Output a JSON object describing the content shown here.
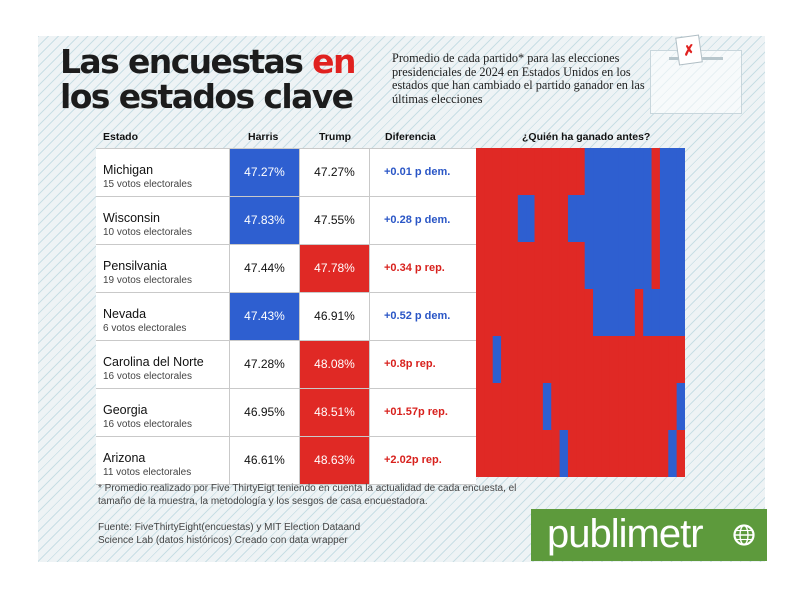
{
  "title": {
    "line1_part1": "Las encuestas",
    "line1_part2": "en",
    "line2": "los estados clave"
  },
  "subtitle": "Promedio de cada partido* para las elecciones presidenciales de 2024 en Estados Unidos en los estados que han cambiado el partido ganador en las últimas elecciones",
  "headers": {
    "state": "Estado",
    "harris": "Harris",
    "trump": "Trump",
    "difference": "Diferencia",
    "history": "¿Quién ha ganado antes?"
  },
  "colors": {
    "democrat": "#2e5fd0",
    "republican": "#e02925",
    "dem_text": "#2a56c6",
    "rep_text": "#d8211d",
    "brand": "#5d9a3c"
  },
  "chart_data": {
    "type": "table",
    "columns": [
      "Estado",
      "Harris",
      "Trump",
      "Diferencia",
      "¿Quién ha ganado antes?"
    ],
    "rows": [
      {
        "state": "Michigan",
        "votes": "15 votos electorales",
        "harris": "47.27%",
        "trump": "47.27%",
        "harris_value": 47.27,
        "trump_value": 47.27,
        "leader": "D",
        "diff": "+0.01 p dem.",
        "diff_party": "dem",
        "history": [
          "R",
          "R",
          "R",
          "R",
          "R",
          "R",
          "R",
          "R",
          "R",
          "R",
          "R",
          "R",
          "R",
          "D",
          "D",
          "D",
          "D",
          "D",
          "D",
          "D",
          "D",
          "R",
          "D",
          "D",
          "D"
        ]
      },
      {
        "state": "Wisconsin",
        "votes": "10 votos electorales",
        "harris": "47.83%",
        "trump": "47.55%",
        "harris_value": 47.83,
        "trump_value": 47.55,
        "leader": "D",
        "diff": "+0.28 p dem.",
        "diff_party": "dem",
        "history": [
          "R",
          "R",
          "R",
          "R",
          "R",
          "D",
          "D",
          "R",
          "R",
          "R",
          "R",
          "D",
          "D",
          "D",
          "D",
          "D",
          "D",
          "D",
          "D",
          "D",
          "D",
          "R",
          "D",
          "D",
          "D"
        ]
      },
      {
        "state": "Pensilvania",
        "votes": "19 votos electorales",
        "harris": "47.44%",
        "trump": "47.78%",
        "harris_value": 47.44,
        "trump_value": 47.78,
        "leader": "R",
        "diff": "+0.34 p rep.",
        "diff_party": "rep",
        "history": [
          "R",
          "R",
          "R",
          "R",
          "R",
          "R",
          "R",
          "R",
          "R",
          "R",
          "R",
          "R",
          "R",
          "D",
          "D",
          "D",
          "D",
          "D",
          "D",
          "D",
          "D",
          "R",
          "D",
          "D",
          "D"
        ]
      },
      {
        "state": "Nevada",
        "votes": "6 votos electorales",
        "harris": "47.43%",
        "trump": "46.91%",
        "harris_value": 47.43,
        "trump_value": 46.91,
        "leader": "D",
        "diff": "+0.52 p dem.",
        "diff_party": "dem",
        "history": [
          "R",
          "R",
          "R",
          "R",
          "R",
          "R",
          "R",
          "R",
          "R",
          "R",
          "R",
          "R",
          "R",
          "R",
          "D",
          "D",
          "D",
          "D",
          "D",
          "R",
          "D",
          "D",
          "D",
          "D",
          "D"
        ]
      },
      {
        "state": "Carolina del Norte",
        "votes": "16 votos electorales",
        "harris": "47.28%",
        "trump": "48.08%",
        "harris_value": 47.28,
        "trump_value": 48.08,
        "leader": "R",
        "diff": "+0.8p rep.",
        "diff_party": "rep",
        "history": [
          "R",
          "R",
          "D",
          "R",
          "R",
          "R",
          "R",
          "R",
          "R",
          "R",
          "R",
          "R",
          "R",
          "R",
          "R",
          "R",
          "R",
          "R",
          "R",
          "R",
          "R",
          "R",
          "R",
          "R",
          "R"
        ]
      },
      {
        "state": "Georgia",
        "votes": "16 votos electorales",
        "harris": "46.95%",
        "trump": "48.51%",
        "harris_value": 46.95,
        "trump_value": 48.51,
        "leader": "R",
        "diff": "+01.57p rep.",
        "diff_party": "rep",
        "history": [
          "R",
          "R",
          "R",
          "R",
          "R",
          "R",
          "R",
          "R",
          "D",
          "R",
          "R",
          "R",
          "R",
          "R",
          "R",
          "R",
          "R",
          "R",
          "R",
          "R",
          "R",
          "R",
          "R",
          "R",
          "D"
        ]
      },
      {
        "state": "Arizona",
        "votes": "11 votos electorales",
        "harris": "46.61%",
        "trump": "48.63%",
        "harris_value": 46.61,
        "trump_value": 48.63,
        "leader": "R",
        "diff": "+2.02p rep.",
        "diff_party": "rep",
        "history": [
          "R",
          "R",
          "R",
          "R",
          "R",
          "R",
          "R",
          "R",
          "R",
          "R",
          "D",
          "R",
          "R",
          "R",
          "R",
          "R",
          "R",
          "R",
          "R",
          "R",
          "R",
          "R",
          "R",
          "D",
          "R"
        ]
      }
    ]
  },
  "footnote": "* Promedio realizado por Five ThirtyEigt teniendo en cuenta la actualidad de cada encuesta, el tamaño de la muestra, la metodología y los sesgos de casa encuestadora.",
  "source": "Fuente: FiveThirtyEight(encuestas) y MIT Election Dataand Science Lab (datos históricos) Creado con data wrapper",
  "logo": {
    "text": "publimetr"
  }
}
